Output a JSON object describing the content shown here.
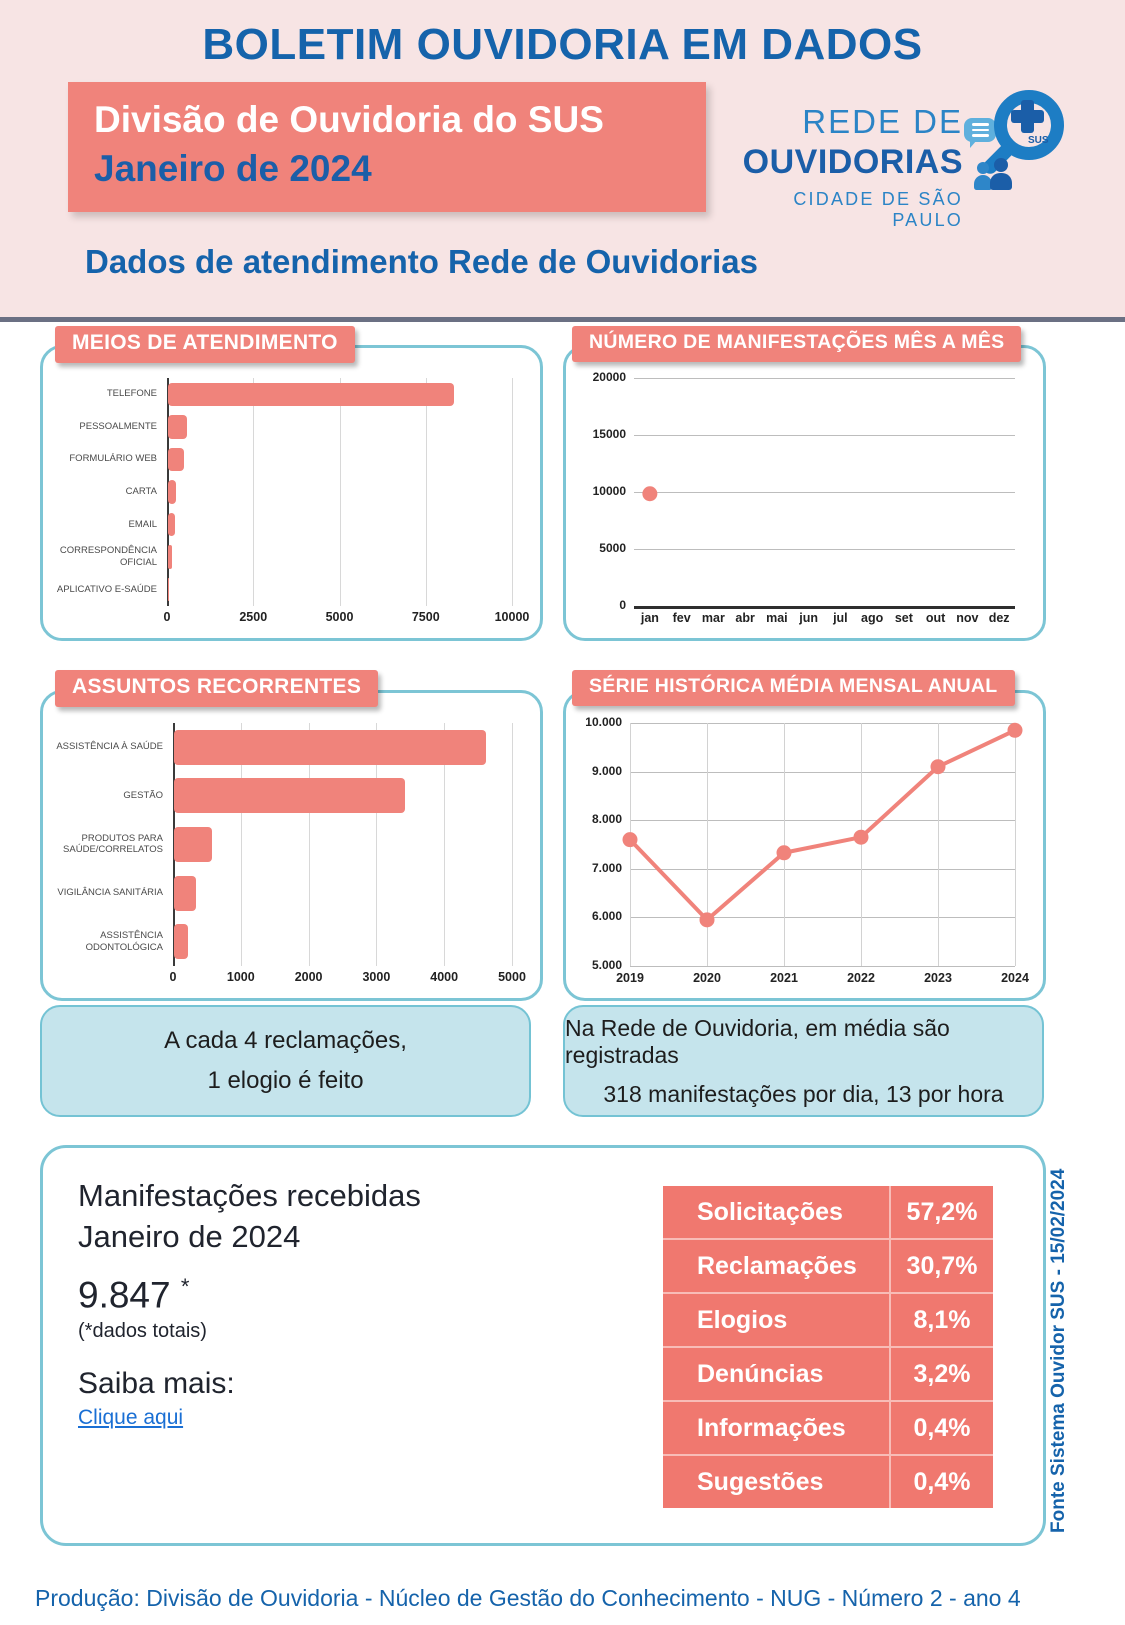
{
  "header": {
    "title": "BOLETIM OUVIDORIA EM DADOS",
    "division": "Divisão de Ouvidoria do SUS",
    "period": "Janeiro de 2024",
    "subtitle": "Dados de atendimento Rede de Ouvidorias",
    "logo": {
      "line1": "REDE DE",
      "line2": "OUVIDORIAS",
      "line3": "CIDADE DE SÃO PAULO",
      "badge": "SUS"
    }
  },
  "chart_data": [
    {
      "id": "meios-de-atendimento",
      "type": "bar",
      "orientation": "horizontal",
      "title": "MEIOS DE ATENDIMENTO",
      "categories": [
        "TELEFONE",
        "PESSOALMENTE",
        "FORMULÁRIO WEB",
        "CARTA",
        "EMAIL",
        "CORRESPONDÊNCIA OFICIAL",
        "APLICATIVO E-SAÚDE"
      ],
      "values": [
        8300,
        550,
        460,
        220,
        210,
        130,
        15
      ],
      "xlim": [
        0,
        10000
      ],
      "xticks": [
        0,
        2500,
        5000,
        7500,
        10000
      ],
      "xtick_labels": [
        "0",
        "2500",
        "5000",
        "7500",
        "10000"
      ],
      "bar_color": "#f0837b",
      "grid": "vertical"
    },
    {
      "id": "manifestacoes-mes-a-mes",
      "type": "line",
      "title": "NÚMERO DE MANIFESTAÇÕES MÊS A MÊS",
      "categories": [
        "jan",
        "fev",
        "mar",
        "abr",
        "mai",
        "jun",
        "jul",
        "ago",
        "set",
        "out",
        "nov",
        "dez"
      ],
      "values": [
        9847,
        null,
        null,
        null,
        null,
        null,
        null,
        null,
        null,
        null,
        null,
        null
      ],
      "ylim": [
        0,
        20000
      ],
      "yticks": [
        20000,
        15000,
        10000,
        5000,
        0
      ],
      "ytick_labels": [
        "20000",
        "15000",
        "10000",
        "5000",
        "0"
      ],
      "line_color": "#f0837b",
      "grid": "horizontal"
    },
    {
      "id": "assuntos-recorrentes",
      "type": "bar",
      "orientation": "horizontal",
      "title": "ASSUNTOS RECORRENTES",
      "categories": [
        "ASSISTÊNCIA À SAÚDE",
        "GESTÃO",
        "PRODUTOS PARA SAÚDE/CORRELATOS",
        "VIGILÂNCIA SANITÁRIA",
        "ASSISTÊNCIA ODONTOLÓGICA"
      ],
      "values": [
        4600,
        3400,
        560,
        320,
        200
      ],
      "xlim": [
        0,
        5000
      ],
      "xticks": [
        0,
        1000,
        2000,
        3000,
        4000,
        5000
      ],
      "xtick_labels": [
        "0",
        "1000",
        "2000",
        "3000",
        "4000",
        "5000"
      ],
      "bar_color": "#f0837b",
      "grid": "vertical"
    },
    {
      "id": "serie-historica-media-mensal-anual",
      "type": "line",
      "title": "SÉRIE HISTÓRICA MÉDIA MENSAL ANUAL",
      "categories": [
        "2019",
        "2020",
        "2021",
        "2022",
        "2023",
        "2024"
      ],
      "values": [
        7600,
        5950,
        7330,
        7650,
        9100,
        9850
      ],
      "ylim": [
        5000,
        10000
      ],
      "yticks": [
        10000,
        9000,
        8000,
        7000,
        6000,
        5000
      ],
      "ytick_labels": [
        "10.000",
        "9.000",
        "8.000",
        "7.000",
        "6.000",
        "5.000"
      ],
      "line_color": "#f0837b",
      "grid": "both"
    }
  ],
  "insights": {
    "left_line1": "A cada 4 reclamações,",
    "left_line2": "1 elogio é feito",
    "right_line1": "Na Rede de Ouvidoria, em média são registradas",
    "right_line2": "318 manifestações por dia, 13 por hora"
  },
  "summary": {
    "heading_line1": "Manifestações recebidas",
    "heading_line2": "Janeiro de 2024",
    "total": "9.847",
    "asterisk": "*",
    "note": "(*dados totais)",
    "more_label": "Saiba mais:",
    "link_label": "Clique aqui"
  },
  "breakdown_table": {
    "rows": [
      {
        "label": "Solicitações",
        "value": "57,2%"
      },
      {
        "label": "Reclamações",
        "value": "30,7%"
      },
      {
        "label": "Elogios",
        "value": "8,1%"
      },
      {
        "label": "Denúncias",
        "value": "3,2%"
      },
      {
        "label": "Informações",
        "value": "0,4%"
      },
      {
        "label": "Sugestões",
        "value": "0,4%"
      }
    ]
  },
  "source_note": "Fonte Sistema Ouvidor SUS - 15/02/2024",
  "footer": "Produção: Divisão de Ouvidoria - Núcleo de Gestão do Conhecimento - NUG - Número 2 - ano 4",
  "colors": {
    "accent_salmon": "#f0837b",
    "accent_blue": "#1563ab",
    "dark_blue": "#1b5ea8",
    "card_border": "#7cc5d5",
    "insight_bg": "#c5e4ec",
    "header_bg": "#f7e4e4"
  }
}
